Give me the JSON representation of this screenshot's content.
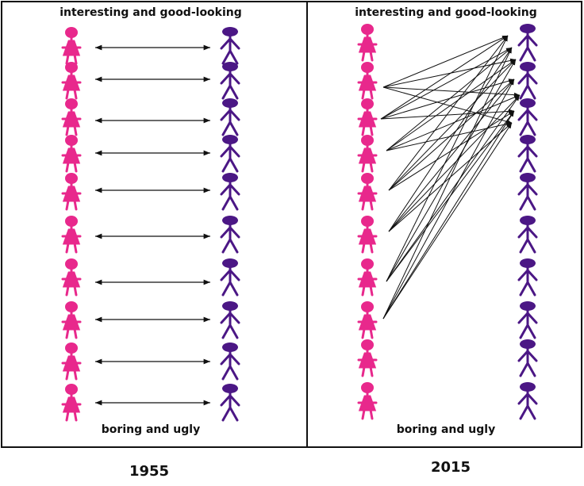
{
  "panels": [
    {
      "top_label": "interesting and good-looking",
      "bottom_label": "boring and ugly",
      "year": "1955"
    },
    {
      "top_label": "interesting and good-looking",
      "bottom_label": "boring and ugly",
      "year": "2015"
    }
  ]
}
